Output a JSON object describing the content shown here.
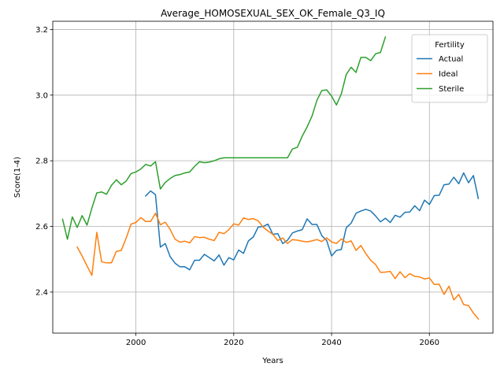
{
  "chart_data": {
    "type": "line",
    "title": "Average_HOMOSEXUAL_SEX_OK_Female_Q3_IQ",
    "xlabel": "Years",
    "ylabel": "Score(1-4)",
    "xlim": [
      1983,
      2073
    ],
    "ylim": [
      2.275,
      3.225
    ],
    "xticks": [
      2000,
      2020,
      2040,
      2060
    ],
    "yticks": [
      2.4,
      2.6,
      2.8,
      3.0,
      3.2
    ],
    "xtick_labels": [
      "2000",
      "2020",
      "2040",
      "2060"
    ],
    "ytick_labels": [
      "2.4",
      "2.6",
      "2.8",
      "3.0",
      "3.2"
    ],
    "grid": true,
    "legend": {
      "title": "Fertility",
      "placement": "top-right"
    },
    "series": [
      {
        "name": "Actual",
        "color": "#1f77b4",
        "x": [
          2002,
          2003,
          2004,
          2005,
          2006,
          2007,
          2008,
          2009,
          2010,
          2011,
          2012,
          2013,
          2014,
          2015,
          2016,
          2017,
          2018,
          2019,
          2020,
          2021,
          2022,
          2023,
          2024,
          2025,
          2026,
          2027,
          2028,
          2029,
          2030,
          2031,
          2032,
          2033,
          2034,
          2035,
          2036,
          2037,
          2038,
          2039,
          2040,
          2041,
          2042,
          2043,
          2044,
          2045,
          2046,
          2047,
          2048,
          2049,
          2050,
          2051,
          2052,
          2053,
          2054,
          2055,
          2056,
          2057,
          2058,
          2059,
          2060,
          2061,
          2062,
          2063,
          2064,
          2065,
          2066,
          2067,
          2068,
          2069,
          2070
        ],
        "y": [
          2.693,
          2.708,
          2.697,
          2.537,
          2.548,
          2.508,
          2.488,
          2.477,
          2.477,
          2.468,
          2.497,
          2.497,
          2.515,
          2.505,
          2.495,
          2.513,
          2.482,
          2.505,
          2.498,
          2.528,
          2.518,
          2.556,
          2.568,
          2.598,
          2.6,
          2.607,
          2.576,
          2.578,
          2.548,
          2.558,
          2.58,
          2.586,
          2.59,
          2.623,
          2.606,
          2.606,
          2.572,
          2.557,
          2.51,
          2.527,
          2.53,
          2.596,
          2.61,
          2.64,
          2.647,
          2.652,
          2.647,
          2.632,
          2.614,
          2.625,
          2.612,
          2.634,
          2.628,
          2.643,
          2.644,
          2.663,
          2.648,
          2.68,
          2.667,
          2.694,
          2.695,
          2.727,
          2.729,
          2.75,
          2.73,
          2.763,
          2.733,
          2.755,
          2.685
        ]
      },
      {
        "name": "Ideal",
        "color": "#ff7f0e",
        "x": [
          1988,
          1989,
          1990,
          1991,
          1992,
          1993,
          1994,
          1995,
          1996,
          1997,
          1998,
          1999,
          2000,
          2001,
          2002,
          2003,
          2004,
          2005,
          2006,
          2007,
          2008,
          2009,
          2010,
          2011,
          2012,
          2013,
          2014,
          2015,
          2016,
          2017,
          2018,
          2019,
          2020,
          2021,
          2022,
          2023,
          2024,
          2025,
          2026,
          2027,
          2028,
          2029,
          2030,
          2031,
          2032,
          2033,
          2034,
          2035,
          2036,
          2037,
          2038,
          2039,
          2040,
          2041,
          2042,
          2043,
          2044,
          2045,
          2046,
          2047,
          2048,
          2049,
          2050,
          2051,
          2052,
          2053,
          2054,
          2055,
          2056,
          2057,
          2058,
          2059,
          2060,
          2061,
          2062,
          2063,
          2064,
          2065,
          2066,
          2067,
          2068,
          2069,
          2070
        ],
        "y": [
          2.537,
          2.51,
          2.48,
          2.451,
          2.582,
          2.492,
          2.489,
          2.489,
          2.524,
          2.527,
          2.564,
          2.607,
          2.612,
          2.627,
          2.615,
          2.615,
          2.64,
          2.605,
          2.613,
          2.591,
          2.561,
          2.552,
          2.555,
          2.55,
          2.569,
          2.566,
          2.567,
          2.561,
          2.557,
          2.582,
          2.578,
          2.59,
          2.608,
          2.604,
          2.626,
          2.621,
          2.624,
          2.617,
          2.598,
          2.586,
          2.576,
          2.557,
          2.565,
          2.548,
          2.56,
          2.558,
          2.555,
          2.553,
          2.556,
          2.56,
          2.554,
          2.565,
          2.553,
          2.548,
          2.562,
          2.551,
          2.556,
          2.527,
          2.542,
          2.517,
          2.497,
          2.484,
          2.46,
          2.461,
          2.463,
          2.441,
          2.462,
          2.444,
          2.456,
          2.448,
          2.446,
          2.44,
          2.443,
          2.423,
          2.424,
          2.393,
          2.418,
          2.376,
          2.393,
          2.362,
          2.359,
          2.336,
          2.318
        ]
      },
      {
        "name": "Sterile",
        "color": "#2ca02c",
        "x": [
          1985,
          1986,
          1987,
          1988,
          1989,
          1990,
          1991,
          1992,
          1993,
          1994,
          1995,
          1996,
          1997,
          1998,
          1999,
          2000,
          2001,
          2002,
          2003,
          2004,
          2005,
          2006,
          2007,
          2008,
          2009,
          2010,
          2011,
          2012,
          2013,
          2014,
          2015,
          2016,
          2017,
          2018,
          2019,
          2020,
          2021,
          2022,
          2023,
          2024,
          2025,
          2026,
          2027,
          2028,
          2029,
          2030,
          2031,
          2032,
          2033,
          2034,
          2035,
          2036,
          2037,
          2038,
          2039,
          2040,
          2041,
          2042,
          2043,
          2044,
          2045,
          2046,
          2047,
          2048,
          2049,
          2050,
          2051
        ],
        "y": [
          2.622,
          2.561,
          2.629,
          2.597,
          2.633,
          2.604,
          2.656,
          2.702,
          2.705,
          2.698,
          2.725,
          2.742,
          2.727,
          2.738,
          2.761,
          2.766,
          2.775,
          2.789,
          2.784,
          2.797,
          2.714,
          2.734,
          2.746,
          2.755,
          2.758,
          2.763,
          2.766,
          2.783,
          2.797,
          2.794,
          2.796,
          2.8,
          2.806,
          2.809,
          2.809,
          2.809,
          2.809,
          2.809,
          2.809,
          2.809,
          2.809,
          2.809,
          2.809,
          2.809,
          2.809,
          2.809,
          2.809,
          2.836,
          2.841,
          2.875,
          2.903,
          2.936,
          2.984,
          3.014,
          3.016,
          2.997,
          2.97,
          3.004,
          3.063,
          3.085,
          3.069,
          3.115,
          3.115,
          3.105,
          3.126,
          3.13,
          3.177
        ]
      }
    ]
  }
}
